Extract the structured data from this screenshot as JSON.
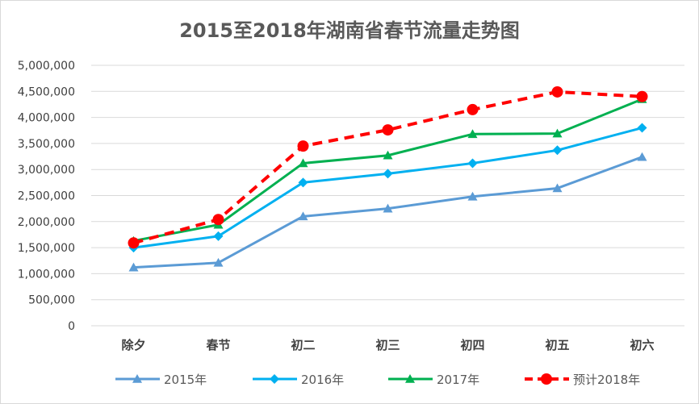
{
  "chart_data": {
    "type": "line",
    "title": "2015至2018年湖南省春节流量走势图",
    "xlabel": "",
    "ylabel": "",
    "categories": [
      "除夕",
      "春节",
      "初二",
      "初三",
      "初四",
      "初五",
      "初六"
    ],
    "ylim": [
      0,
      5000000
    ],
    "yticks": [
      0,
      500000,
      1000000,
      1500000,
      2000000,
      2500000,
      3000000,
      3500000,
      4000000,
      4500000,
      5000000
    ],
    "ytick_labels": [
      "0",
      "500,000",
      "1,000,000",
      "1,500,000",
      "2,000,000",
      "2,500,000",
      "3,000,000",
      "3,500,000",
      "4,000,000",
      "4,500,000",
      "5,000,000"
    ],
    "grid": true,
    "legend_position": "bottom",
    "series": [
      {
        "name": "2015年",
        "color": "#5B9BD5",
        "marker": "triangle",
        "dashed": false,
        "values": [
          1120000,
          1210000,
          2100000,
          2250000,
          2480000,
          2640000,
          3240000
        ]
      },
      {
        "name": "2016年",
        "color": "#00B0F0",
        "marker": "diamond",
        "dashed": false,
        "values": [
          1500000,
          1720000,
          2750000,
          2920000,
          3120000,
          3370000,
          3800000
        ]
      },
      {
        "name": "2017年",
        "color": "#00B050",
        "marker": "triangle",
        "dashed": false,
        "values": [
          1630000,
          1940000,
          3120000,
          3270000,
          3680000,
          3690000,
          4350000
        ]
      },
      {
        "name": "预计2018年",
        "color": "#FF0000",
        "marker": "circle",
        "dashed": true,
        "values": [
          1590000,
          2040000,
          3450000,
          3760000,
          4150000,
          4490000,
          4400000
        ]
      }
    ]
  }
}
